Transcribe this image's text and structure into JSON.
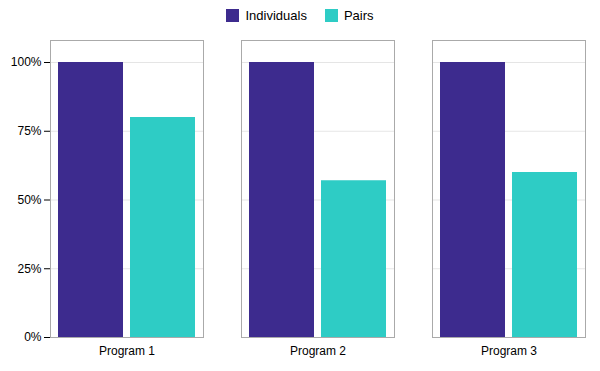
{
  "chart_data": {
    "type": "bar",
    "categories": [
      "Program 1",
      "Program 2",
      "Program 3"
    ],
    "series": [
      {
        "name": "Individuals",
        "color": "#3D2B8E",
        "values": [
          100,
          100,
          100
        ]
      },
      {
        "name": "Pairs",
        "color": "#2ECCC5",
        "values": [
          80,
          57,
          60
        ]
      }
    ],
    "ylim": [
      0,
      108
    ],
    "yticks": [
      {
        "value": 0,
        "label": "0%"
      },
      {
        "value": 25,
        "label": "25%"
      },
      {
        "value": 50,
        "label": "50%"
      },
      {
        "value": 75,
        "label": "75%"
      },
      {
        "value": 100,
        "label": "100%"
      }
    ],
    "grid": true,
    "legend": "top"
  }
}
